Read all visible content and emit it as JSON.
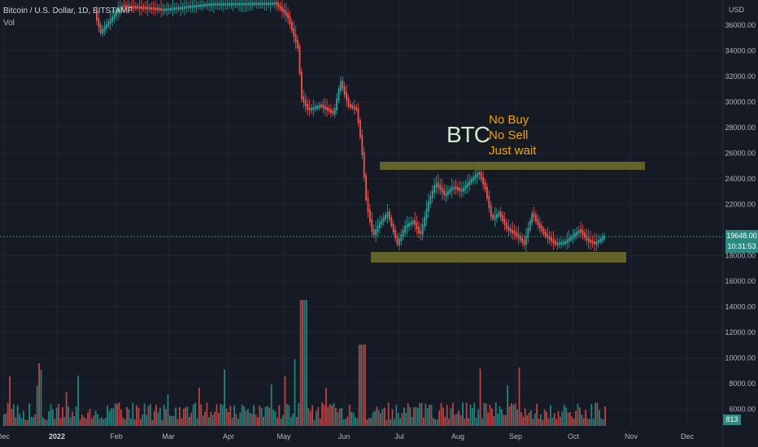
{
  "header": {
    "title": "Bitcoin / U.S. Dollar, 1D, BITSTAMP",
    "volume_label": "Vol"
  },
  "annotation": {
    "ticker": "BTC",
    "lines": [
      "No Buy",
      "No Sell",
      "Just wait"
    ]
  },
  "price_axis": {
    "currency": "USD",
    "ticks": [
      "36000.00",
      "34000.00",
      "32000.00",
      "30000.00",
      "28000.00",
      "26000.00",
      "24000.00",
      "22000.00",
      "18000.00",
      "16000.00",
      "14000.00",
      "12000.00",
      "10000.00",
      "8000.00",
      "6000.00"
    ]
  },
  "time_axis": {
    "labels": [
      "Dec",
      "2022",
      "Feb",
      "Mar",
      "Apr",
      "May",
      "Jun",
      "Jul",
      "Aug",
      "Sep",
      "Oct",
      "Nov",
      "Dec"
    ]
  },
  "current_price": {
    "value": "19648.00",
    "countdown": "10:31:53"
  },
  "volume_badge": "813",
  "colors": {
    "background": "#161a25",
    "up": "#26a69a",
    "down": "#ef5350",
    "zone": "#6b6a2a",
    "annotation_orange": "#f0a30a",
    "annotation_btc": "#d7e6c9"
  },
  "chart_data": {
    "type": "candlestick",
    "zones": [
      {
        "price_low": 24600,
        "price_high": 25200,
        "from": "Jul",
        "to": "Oct"
      },
      {
        "price_low": 17800,
        "price_high": 18600,
        "from": "Jun",
        "to": "Oct"
      }
    ],
    "ylim": [
      16000,
      37000
    ],
    "last_price": 19648
  }
}
